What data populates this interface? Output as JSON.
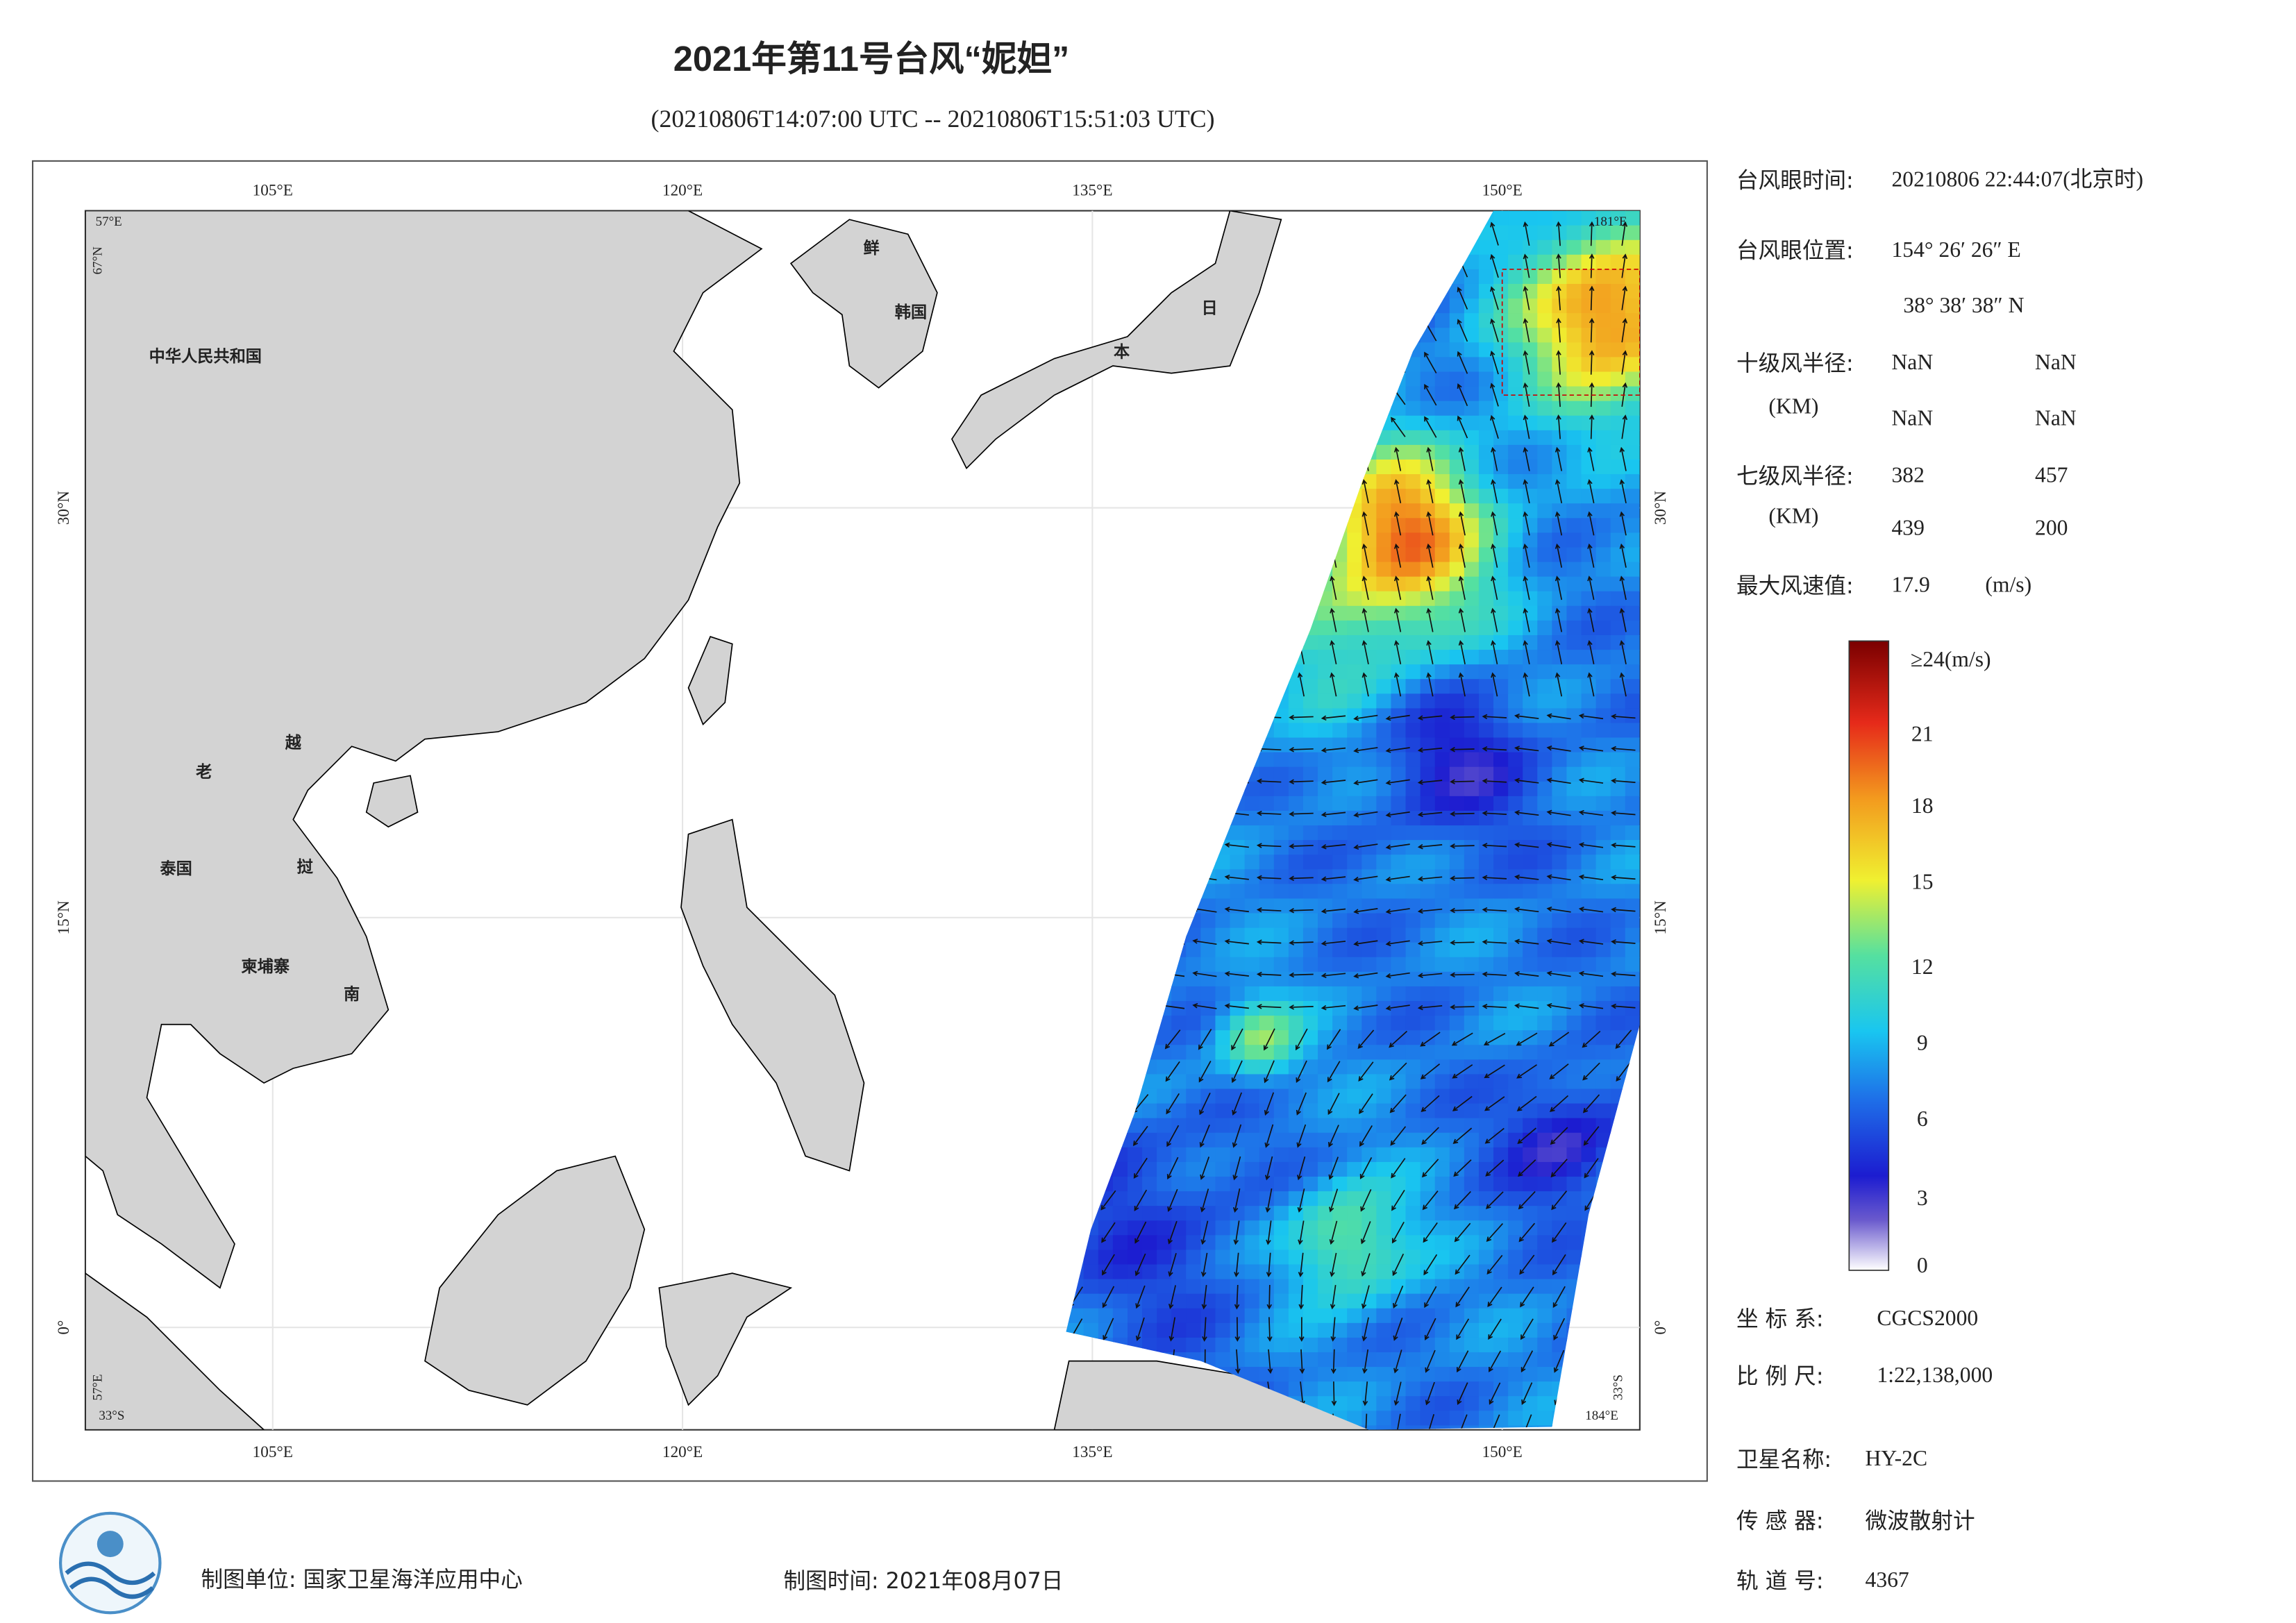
{
  "header": {
    "title": "2021年第11号台风“妮妲”",
    "subtitle": "(20210806T14:07:00 UTC -- 20210806T15:51:03 UTC)"
  },
  "map": {
    "lon_labels": [
      "105°E",
      "120°E",
      "135°E",
      "150°E"
    ],
    "lat_labels": [
      "30°N",
      "15°N",
      "0°"
    ],
    "corner_labels": [
      "57°E",
      "67°N",
      "181°E",
      "33°S",
      "184°E",
      "57°E",
      "33°S"
    ],
    "place_labels": [
      "中华人民共和国",
      "鲜",
      "韩国",
      "日",
      "本",
      "老",
      "越",
      "泰国",
      "挝",
      "柬埔寨",
      "南"
    ]
  },
  "info": {
    "eye_time": {
      "label": "台风眼时间:",
      "value": "20210806 22:44:07(北京时)"
    },
    "eye_position": {
      "label": "台风眼位置:",
      "lon": "154° 26′ 26″ E",
      "lat": "38° 38′ 38″ N"
    },
    "radius10": {
      "label": "十级风半径:",
      "unit": "(KM)",
      "values": [
        "NaN",
        "NaN",
        "NaN",
        "NaN"
      ]
    },
    "radius7": {
      "label": "七级风半径:",
      "unit": "(KM)",
      "values": [
        382,
        457,
        439,
        200
      ]
    },
    "max_wind": {
      "label": "最大风速值:",
      "value": 17.9,
      "unit": "(m/s)"
    }
  },
  "colorbar": {
    "labels": [
      "≥24(m/s)",
      21,
      18,
      15,
      12,
      9,
      6,
      3,
      0
    ]
  },
  "meta": {
    "coordinate_system": {
      "label": "坐 标 系:",
      "value": "CGCS2000"
    },
    "scale": {
      "label": "比 例 尺:",
      "value": "1:22,138,000"
    },
    "satellite": {
      "label": "卫星名称:",
      "value": "HY-2C"
    },
    "sensor": {
      "label": "传 感 器:",
      "value": "微波散射计"
    },
    "orbit": {
      "label": "轨 道 号:",
      "value": 4367
    }
  },
  "footer": {
    "unit": "制图单位: 国家卫星海洋应用中心",
    "time": "制图时间: 2021年08月07日"
  }
}
